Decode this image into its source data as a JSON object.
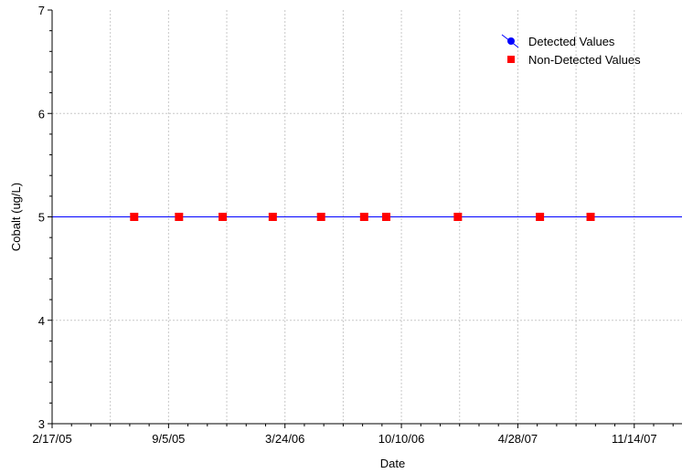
{
  "chart_data": {
    "type": "scatter",
    "title": "",
    "xlabel": "Date",
    "ylabel": "Cobalt (ug/L)",
    "x_axis_kind": "date",
    "xlim": [
      "2005-02-17",
      "2008-02-04"
    ],
    "ylim": [
      3,
      7
    ],
    "grid": true,
    "legend_position": "top-right",
    "x_ticks": [
      {
        "date": "2005-02-17",
        "label": "2/17/05"
      },
      {
        "date": "2005-09-05",
        "label": "9/5/05"
      },
      {
        "date": "2006-03-24",
        "label": "3/24/06"
      },
      {
        "date": "2006-10-10",
        "label": "10/10/06"
      },
      {
        "date": "2007-04-28",
        "label": "4/28/07"
      },
      {
        "date": "2007-11-14",
        "label": "11/14/07"
      }
    ],
    "y_ticks": [
      {
        "value": 3,
        "label": "3"
      },
      {
        "value": 4,
        "label": "4"
      },
      {
        "value": 5,
        "label": "5"
      },
      {
        "value": 6,
        "label": "6"
      },
      {
        "value": 7,
        "label": "7"
      }
    ],
    "series": [
      {
        "name": "Detected Values",
        "marker": "circle",
        "color": "#0000ff",
        "line": {
          "y": 5
        },
        "points": []
      },
      {
        "name": "Non-Detected Values",
        "marker": "square",
        "color": "#ff0000",
        "points": [
          {
            "x": "2005-07-08",
            "y": 5
          },
          {
            "x": "2005-09-23",
            "y": 5
          },
          {
            "x": "2005-12-07",
            "y": 5
          },
          {
            "x": "2006-03-03",
            "y": 5
          },
          {
            "x": "2006-05-25",
            "y": 5
          },
          {
            "x": "2006-08-07",
            "y": 5
          },
          {
            "x": "2006-09-14",
            "y": 5
          },
          {
            "x": "2007-01-15",
            "y": 5
          },
          {
            "x": "2007-06-05",
            "y": 5
          },
          {
            "x": "2007-08-31",
            "y": 5
          }
        ]
      }
    ]
  }
}
